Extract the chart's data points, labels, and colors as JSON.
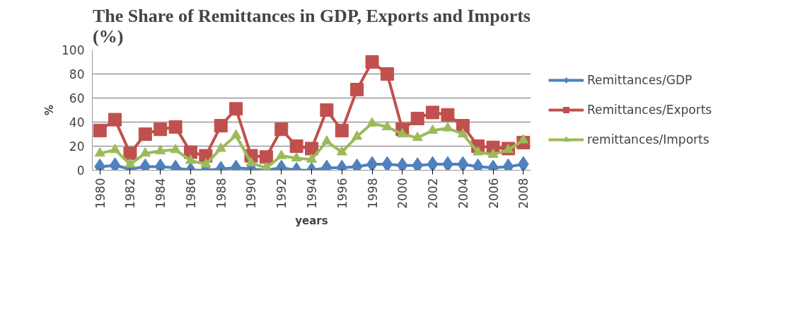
{
  "chart_data": {
    "type": "line",
    "title": "The Share of Remittances in GDP, Exports and Imports (%)",
    "xlabel": "years",
    "ylabel": "%",
    "categories": [
      "1980",
      null,
      "1982",
      null,
      "1984",
      null,
      "1986",
      null,
      "1988",
      null,
      "1990",
      null,
      "1992",
      null,
      "1994",
      null,
      "1996",
      null,
      "1998",
      null,
      "2000",
      null,
      "2002",
      null,
      "2004",
      null,
      "2006",
      null,
      "2008"
    ],
    "series": [
      {
        "name": "Remittances/GDP",
        "color": "#4f81bd",
        "marker": "diamond",
        "values": [
          3,
          4,
          1,
          3,
          3,
          2,
          0,
          0,
          1,
          2,
          1,
          0,
          2,
          0,
          0,
          2,
          2,
          3,
          5,
          5,
          4,
          4,
          5,
          5,
          5,
          3,
          2,
          3,
          5
        ]
      },
      {
        "name": "Remittances/Exports",
        "color": "#c0504d",
        "marker": "square",
        "values": [
          33,
          42,
          14,
          30,
          34,
          36,
          15,
          12,
          37,
          51,
          12,
          11,
          34,
          20,
          18,
          50,
          33,
          67,
          90,
          80,
          34,
          43,
          48,
          46,
          37,
          20,
          19,
          18,
          23
        ]
      },
      {
        "name": "remittances/Imports",
        "color": "#9bbb59",
        "marker": "triangle",
        "values": [
          14,
          17,
          5,
          14,
          16,
          17,
          8,
          5,
          18,
          29,
          6,
          2,
          12,
          10,
          9,
          24,
          15,
          28,
          39,
          36,
          30,
          27,
          33,
          35,
          30,
          15,
          13,
          17,
          25
        ]
      }
    ],
    "ylim": [
      0,
      100
    ],
    "yticks": [
      0,
      20,
      40,
      60,
      80,
      100
    ],
    "grid": "y",
    "legend": "right"
  }
}
